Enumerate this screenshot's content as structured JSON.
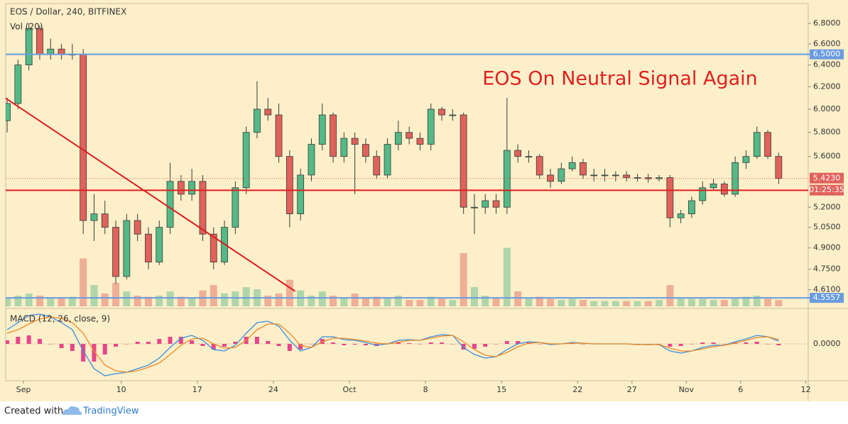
{
  "chart_data": {
    "type": "candlestick",
    "title": "EOS / Dollar, 240, BITFINEX",
    "annotation": "EOS On Neutral Signal Again",
    "log_scale": true,
    "x": [
      "Aug 30",
      "Aug 31",
      "Sep 1",
      "Sep 2",
      "Sep 3",
      "Sep 4",
      "Sep 5",
      "Sep 6",
      "Sep 7",
      "Sep 8",
      "Sep 9",
      "Sep 10",
      "Sep 11",
      "Sep 12",
      "Sep 13",
      "Sep 14",
      "Sep 15",
      "Sep 16",
      "Sep 17",
      "Sep 18",
      "Sep 19",
      "Sep 20",
      "Sep 21",
      "Sep 22",
      "Sep 23",
      "Sep 24",
      "Sep 25",
      "Sep 26",
      "Sep 27",
      "Sep 28",
      "Sep 29",
      "Sep 30",
      "Oct 1",
      "Oct 2",
      "Oct 3",
      "Oct 4",
      "Oct 5",
      "Oct 6",
      "Oct 7",
      "Oct 8",
      "Oct 9",
      "Oct 10",
      "Oct 11",
      "Oct 12",
      "Oct 13",
      "Oct 14",
      "Oct 15",
      "Oct 16",
      "Oct 17",
      "Oct 18",
      "Oct 19",
      "Oct 20",
      "Oct 21",
      "Oct 22",
      "Oct 23",
      "Oct 24",
      "Oct 25",
      "Oct 26",
      "Oct 27",
      "Oct 28",
      "Oct 29",
      "Oct 30",
      "Oct 31",
      "Nov 1",
      "Nov 2",
      "Nov 3",
      "Nov 4",
      "Nov 5",
      "Nov 6",
      "Nov 7",
      "Nov 8",
      "Nov 9"
    ],
    "open": [
      5.9,
      6.05,
      6.4,
      6.75,
      6.5,
      6.55,
      6.5,
      6.5,
      5.1,
      5.15,
      5.05,
      4.7,
      5.1,
      5.0,
      4.8,
      5.05,
      5.4,
      5.3,
      5.4,
      5.0,
      4.8,
      5.05,
      5.35,
      5.8,
      6.0,
      5.95,
      5.6,
      5.15,
      5.45,
      5.7,
      5.95,
      5.6,
      5.75,
      5.7,
      5.6,
      5.45,
      5.7,
      5.8,
      5.75,
      5.7,
      6.0,
      5.95,
      5.95,
      5.2,
      5.2,
      5.25,
      5.2,
      5.65,
      5.6,
      5.6,
      5.45,
      5.4,
      5.5,
      5.55,
      5.45,
      5.45,
      5.45,
      5.45,
      5.43,
      5.43,
      5.42,
      5.43,
      5.12,
      5.15,
      5.25,
      5.35,
      5.38,
      5.3,
      5.55,
      5.6,
      5.8,
      5.6
    ],
    "high": [
      6.1,
      6.45,
      6.8,
      6.78,
      6.65,
      6.6,
      6.6,
      6.55,
      5.3,
      5.25,
      5.1,
      5.15,
      5.15,
      5.05,
      5.1,
      5.55,
      5.45,
      5.5,
      5.45,
      5.05,
      5.1,
      5.4,
      5.85,
      6.25,
      6.1,
      6.05,
      5.65,
      5.5,
      5.75,
      6.05,
      5.97,
      5.8,
      5.8,
      5.75,
      5.65,
      5.75,
      5.9,
      5.85,
      5.8,
      6.05,
      6.02,
      6.0,
      5.97,
      5.3,
      5.3,
      5.3,
      6.1,
      5.7,
      5.65,
      5.62,
      5.5,
      5.55,
      5.6,
      5.58,
      5.5,
      5.5,
      5.48,
      5.48,
      5.46,
      5.46,
      5.45,
      5.45,
      5.18,
      5.28,
      5.4,
      5.42,
      5.4,
      5.6,
      5.65,
      5.85,
      5.82,
      5.63
    ],
    "low": [
      5.8,
      6.0,
      6.35,
      6.45,
      6.45,
      6.45,
      6.45,
      5.0,
      4.95,
      5.0,
      4.65,
      4.68,
      4.95,
      4.75,
      4.78,
      5.0,
      5.25,
      5.25,
      4.95,
      4.75,
      4.78,
      5.0,
      5.3,
      5.75,
      5.9,
      5.55,
      5.05,
      5.1,
      5.4,
      5.65,
      5.55,
      5.55,
      5.3,
      5.55,
      5.42,
      5.42,
      5.65,
      5.7,
      5.65,
      5.65,
      5.9,
      5.9,
      5.15,
      5.0,
      5.15,
      5.15,
      5.15,
      5.55,
      5.55,
      5.42,
      5.35,
      5.38,
      5.48,
      5.42,
      5.4,
      5.4,
      5.4,
      5.4,
      5.4,
      5.39,
      5.4,
      5.05,
      5.08,
      5.12,
      5.22,
      5.33,
      5.28,
      5.28,
      5.5,
      5.58,
      5.58,
      5.38
    ],
    "close": [
      6.05,
      6.4,
      6.75,
      6.5,
      6.55,
      6.5,
      6.5,
      5.1,
      5.15,
      5.05,
      4.7,
      5.1,
      5.0,
      4.8,
      5.05,
      5.4,
      5.3,
      5.4,
      5.0,
      4.8,
      5.05,
      5.35,
      5.8,
      6.0,
      5.95,
      5.6,
      5.15,
      5.45,
      5.7,
      5.95,
      5.6,
      5.75,
      5.7,
      5.6,
      5.45,
      5.7,
      5.8,
      5.75,
      5.7,
      6.0,
      5.95,
      5.95,
      5.2,
      5.2,
      5.25,
      5.2,
      5.65,
      5.6,
      5.6,
      5.45,
      5.4,
      5.5,
      5.55,
      5.45,
      5.45,
      5.45,
      5.45,
      5.43,
      5.43,
      5.42,
      5.43,
      5.12,
      5.15,
      5.25,
      5.35,
      5.38,
      5.3,
      5.55,
      5.6,
      5.8,
      5.6,
      5.423
    ],
    "up_color": "#53b987",
    "down_color": "#e0625b",
    "ylim": [
      4.5,
      7.0
    ],
    "yticks": [
      {
        "value": 6.8,
        "label": "6.8000"
      },
      {
        "value": 6.6,
        "label": "6.6000"
      },
      {
        "value": 6.4,
        "label": "6.4000"
      },
      {
        "value": 6.2,
        "label": "6.2000"
      },
      {
        "value": 6.0,
        "label": "6.0000"
      },
      {
        "value": 5.8,
        "label": "5.8000"
      },
      {
        "value": 5.6,
        "label": "5.6000"
      },
      {
        "value": 5.2,
        "label": "5.2000"
      },
      {
        "value": 5.05,
        "label": "5.0500"
      },
      {
        "value": 4.9,
        "label": "4.9000"
      },
      {
        "value": 4.75,
        "label": "4.7500"
      },
      {
        "value": 4.61,
        "label": "4.6100"
      }
    ],
    "xticks": [
      {
        "value": "Sep 1",
        "label": "Sep"
      },
      {
        "value": "Sep 10",
        "label": "10"
      },
      {
        "value": "Sep 17",
        "label": "17"
      },
      {
        "value": "Sep 24",
        "label": "24"
      },
      {
        "value": "Oct 1",
        "label": "Oct"
      },
      {
        "value": "Oct 8",
        "label": "8"
      },
      {
        "value": "Oct 15",
        "label": "15"
      },
      {
        "value": "Oct 22",
        "label": "22"
      },
      {
        "value": "Oct 27",
        "label": "27"
      },
      {
        "value": "Nov 1",
        "label": "Nov"
      },
      {
        "value": "Nov 6",
        "label": "6"
      },
      {
        "value": "Nov 12",
        "label": "12"
      }
    ],
    "levels": [
      {
        "value": 6.5,
        "label": "6.5000",
        "color": "#6a9be0"
      },
      {
        "value": 4.5557,
        "label": "4.5557",
        "color": "#6a9be0"
      },
      {
        "value": 5.33,
        "color": "#e02020"
      }
    ],
    "last_price": {
      "value": 5.423,
      "label": "5.4230",
      "countdown": "01:25:35",
      "color": "#e0625b"
    },
    "trend_line": {
      "x": [
        "Aug 30",
        "Sep 26"
      ],
      "y": [
        6.12,
        4.6
      ],
      "color": "#d92020"
    },
    "volume": {
      "label": "Vol (20)",
      "ylim": [
        0,
        100
      ],
      "values": [
        8,
        10,
        12,
        10,
        8,
        8,
        9,
        45,
        20,
        12,
        22,
        14,
        10,
        9,
        10,
        14,
        9,
        8,
        15,
        20,
        12,
        14,
        18,
        16,
        10,
        12,
        25,
        15,
        10,
        14,
        10,
        8,
        12,
        8,
        9,
        8,
        10,
        6,
        6,
        9,
        7,
        6,
        50,
        18,
        10,
        8,
        55,
        14,
        8,
        9,
        7,
        6,
        7,
        6,
        5,
        5,
        5,
        5,
        5,
        5,
        6,
        20,
        8,
        7,
        7,
        6,
        6,
        8,
        9,
        10,
        7,
        6
      ]
    },
    "macd": {
      "label": "MACD (12, 26, close, 9)",
      "ylim": [
        -0.5,
        0.45
      ],
      "yticks": [
        {
          "value": 0,
          "label": "0.0000"
        }
      ],
      "macd_color": "#3a8dde",
      "signal_color": "#f08a24",
      "histogram_color": "#e8458b",
      "macd": [
        0.2,
        0.3,
        0.4,
        0.42,
        0.38,
        0.3,
        0.2,
        -0.1,
        -0.35,
        -0.45,
        -0.42,
        -0.4,
        -0.35,
        -0.3,
        -0.2,
        -0.05,
        0.08,
        0.12,
        0.05,
        -0.08,
        -0.1,
        -0.02,
        0.15,
        0.3,
        0.32,
        0.25,
        0.05,
        -0.1,
        -0.05,
        0.1,
        0.1,
        0.06,
        0.05,
        0.02,
        -0.02,
        0.0,
        0.05,
        0.06,
        0.05,
        0.1,
        0.13,
        0.12,
        -0.05,
        -0.15,
        -0.2,
        -0.18,
        -0.08,
        0.0,
        0.03,
        0.02,
        -0.01,
        0.0,
        0.02,
        0.01,
        0.0,
        0.0,
        0.0,
        0.0,
        -0.01,
        -0.01,
        -0.01,
        -0.1,
        -0.13,
        -0.1,
        -0.05,
        -0.02,
        -0.02,
        0.03,
        0.07,
        0.12,
        0.1,
        0.04
      ],
      "signal": [
        0.15,
        0.2,
        0.28,
        0.35,
        0.38,
        0.36,
        0.3,
        0.15,
        -0.1,
        -0.3,
        -0.38,
        -0.4,
        -0.38,
        -0.33,
        -0.27,
        -0.15,
        -0.02,
        0.07,
        0.08,
        0.0,
        -0.06,
        -0.05,
        0.05,
        0.2,
        0.28,
        0.28,
        0.15,
        -0.02,
        -0.05,
        0.03,
        0.08,
        0.08,
        0.06,
        0.04,
        0.01,
        0.0,
        0.02,
        0.05,
        0.05,
        0.08,
        0.11,
        0.12,
        0.03,
        -0.08,
        -0.16,
        -0.18,
        -0.12,
        -0.04,
        0.01,
        0.02,
        0.0,
        0.0,
        0.01,
        0.01,
        0.0,
        0.0,
        0.0,
        0.0,
        -0.01,
        -0.01,
        -0.01,
        -0.06,
        -0.1,
        -0.1,
        -0.07,
        -0.04,
        -0.02,
        0.01,
        0.05,
        0.09,
        0.1,
        0.06
      ],
      "histogram": [
        0.05,
        0.1,
        0.12,
        0.07,
        0,
        -0.06,
        -0.1,
        -0.25,
        -0.25,
        -0.15,
        -0.04,
        0,
        0.03,
        0.03,
        0.07,
        0.1,
        0.1,
        0.05,
        -0.03,
        -0.08,
        -0.04,
        0.03,
        0.1,
        0.1,
        0.04,
        -0.03,
        -0.1,
        -0.08,
        0,
        0.07,
        0.02,
        -0.02,
        -0.01,
        -0.02,
        -0.03,
        0,
        0.03,
        0.01,
        0,
        0.02,
        0.02,
        0,
        -0.08,
        -0.07,
        -0.04,
        0,
        0.04,
        0.04,
        0.02,
        0,
        -0.01,
        0,
        0.01,
        0,
        0,
        0,
        0,
        0,
        0,
        0,
        0,
        -0.04,
        -0.03,
        0,
        0.02,
        0.02,
        0,
        0.02,
        0.02,
        0.03,
        0,
        -0.02
      ]
    }
  },
  "footer": {
    "created_with": "Created with",
    "brand": "TradingView"
  }
}
